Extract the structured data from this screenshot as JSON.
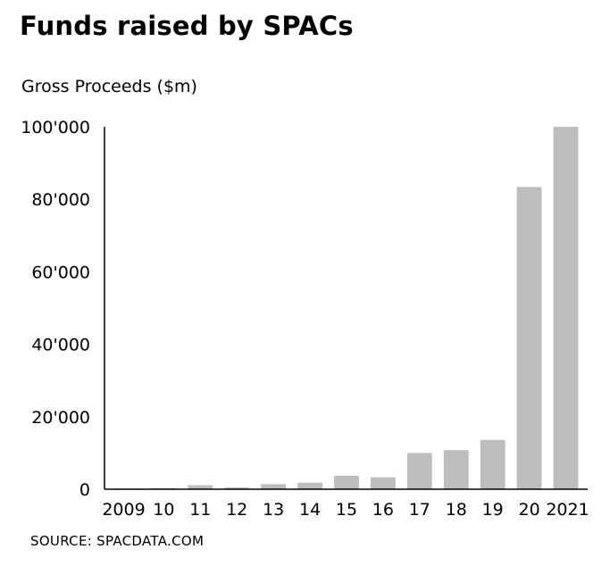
{
  "chart_data": {
    "type": "bar",
    "title": "Funds raised by SPACs",
    "ylabel": "Gross Proceeds ($m)",
    "xlabel": "",
    "source": "SOURCE: SPACDATA.COM",
    "categories": [
      "2009",
      "10",
      "11",
      "12",
      "13",
      "14",
      "15",
      "16",
      "17",
      "18",
      "19",
      "20",
      "2021"
    ],
    "values": [
      40,
      300,
      1100,
      500,
      1400,
      1800,
      3700,
      3300,
      10000,
      10800,
      13600,
      83400,
      100000
    ],
    "yticks": [
      "0",
      "20'000",
      "40'000",
      "60'000",
      "80'000",
      "100'000"
    ],
    "ytick_values": [
      0,
      20000,
      40000,
      60000,
      80000,
      100000
    ],
    "ylim": [
      0,
      100000
    ],
    "grid": false,
    "bar_color": "#bdbdbd"
  }
}
